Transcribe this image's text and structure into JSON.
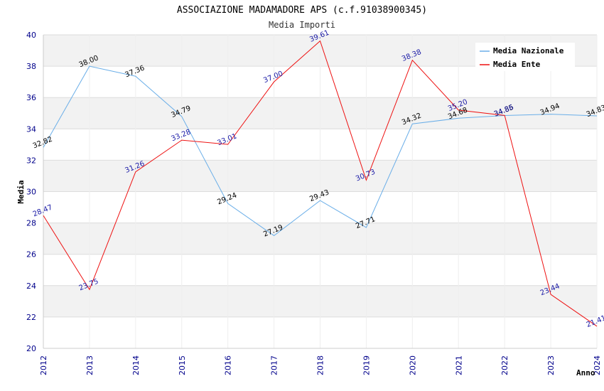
{
  "chart_data": {
    "type": "line",
    "title": "ASSOCIAZIONE MADAMADORE APS (c.f.91038900345)",
    "subtitle": "Media Importi",
    "xlabel": "Anno",
    "ylabel": "Media",
    "x": [
      "2012",
      "2013",
      "2014",
      "2015",
      "2016",
      "2017",
      "2018",
      "2019",
      "2020",
      "2021",
      "2022",
      "2023",
      "2024"
    ],
    "ylim": [
      20,
      40
    ],
    "yticks": [
      20,
      22,
      24,
      26,
      28,
      30,
      32,
      34,
      36,
      38,
      40
    ],
    "grid": "horizontal bands",
    "legend_position": "top-right",
    "series": [
      {
        "name": "Media Nazionale",
        "color": "#6aaee8",
        "values": [
          32.82,
          38.0,
          37.36,
          34.79,
          29.24,
          27.19,
          29.43,
          27.71,
          34.32,
          34.68,
          34.85,
          34.94,
          34.83
        ],
        "labels": [
          "32.82",
          "38.00",
          "37.36",
          "34.79",
          "29.24",
          "27.19",
          "29.43",
          "27.71",
          "34.32",
          "34.68",
          "34.85",
          "34.94",
          "34.83"
        ]
      },
      {
        "name": "Media Ente",
        "color": "#ee1111",
        "values": [
          28.47,
          23.75,
          31.26,
          33.28,
          33.01,
          37.0,
          39.61,
          30.73,
          38.38,
          35.2,
          34.86,
          23.44,
          21.41
        ],
        "labels": [
          "28.47",
          "23.75",
          "31.26",
          "33.28",
          "33.01",
          "37.00",
          "39.61",
          "30.73",
          "38.38",
          "35.20",
          "34.86",
          "23.44",
          "21.41"
        ]
      }
    ]
  }
}
